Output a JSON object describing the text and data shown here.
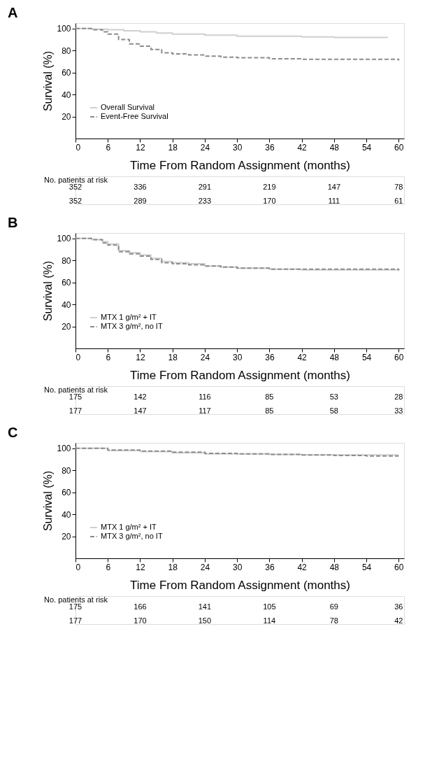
{
  "chart_data": [
    {
      "type": "step",
      "title": "A",
      "xlabel": "Time From Random Assignment (months)",
      "ylabel": "Survival (%)",
      "xlim": [
        0,
        61
      ],
      "xticks": [
        0,
        6,
        12,
        18,
        24,
        30,
        36,
        42,
        48,
        54,
        60
      ],
      "ylim": [
        0,
        105
      ],
      "yticks": [
        20,
        40,
        60,
        80,
        100
      ],
      "grid": false,
      "legend": "bottom left",
      "series": [
        {
          "name": "Overall Survival",
          "color": "#cfcfcf",
          "line_style": "solid",
          "x": [
            0,
            3,
            6,
            9,
            12,
            15,
            18,
            24,
            30,
            36,
            42,
            48,
            54,
            58
          ],
          "values": [
            100,
            99.5,
            99,
            98,
            97,
            96,
            95,
            94,
            93,
            93,
            92.5,
            92,
            92,
            92
          ]
        },
        {
          "name": "Event-Free Survival",
          "color": "#8c8c8c",
          "line_style": "dashed",
          "x": [
            0,
            3,
            5,
            6,
            8,
            10,
            12,
            14,
            16,
            18,
            21,
            24,
            27,
            30,
            36,
            42,
            48,
            54,
            58,
            60
          ],
          "values": [
            100,
            99,
            97,
            95,
            90,
            86,
            84,
            81,
            78,
            77,
            76,
            75,
            74,
            73.5,
            72.5,
            72,
            72,
            72,
            72,
            71
          ]
        }
      ],
      "annotations": [
        "No. patients at risk",
        "352",
        "336",
        "291",
        "219",
        "147",
        "78",
        "352",
        "289",
        "233",
        "170",
        "111",
        "61"
      ]
    },
    {
      "type": "step",
      "title": "B",
      "xlabel": "Time From Random Assignment (months)",
      "ylabel": "Survival (%)",
      "xlim": [
        0,
        61
      ],
      "xticks": [
        0,
        6,
        12,
        18,
        24,
        30,
        36,
        42,
        48,
        54,
        60
      ],
      "ylim": [
        0,
        105
      ],
      "yticks": [
        20,
        40,
        60,
        80,
        100
      ],
      "grid": false,
      "legend": "bottom left",
      "series": [
        {
          "name": "MTX 1 g/m² + IT",
          "color": "#cfcfcf",
          "line_style": "solid",
          "x": [
            0,
            3,
            5,
            6,
            8,
            10,
            12,
            14,
            16,
            18,
            21,
            24,
            27,
            30,
            36,
            42,
            48,
            54,
            60
          ],
          "values": [
            100,
            99,
            97,
            95,
            89,
            87,
            85,
            82,
            79,
            78,
            77,
            75,
            74,
            73,
            72,
            71.5,
            71.5,
            71.5,
            71
          ]
        },
        {
          "name": "MTX 3 g/m², no IT",
          "color": "#8c8c8c",
          "line_style": "dashed",
          "x": [
            0,
            3,
            5,
            6,
            8,
            10,
            12,
            14,
            16,
            18,
            21,
            24,
            27,
            30,
            36,
            42,
            48,
            54,
            60
          ],
          "values": [
            100,
            99,
            96,
            94,
            88,
            86,
            84,
            81,
            78,
            77,
            76,
            75,
            74,
            73,
            72,
            72,
            72,
            72,
            71
          ]
        }
      ],
      "annotations": [
        "No. patients at risk",
        "175",
        "142",
        "116",
        "85",
        "53",
        "28",
        "177",
        "147",
        "117",
        "85",
        "58",
        "33"
      ]
    },
    {
      "type": "step",
      "title": "C",
      "xlabel": "Time From Random Assignment (months)",
      "ylabel": "Survival (%)",
      "xlim": [
        0,
        61
      ],
      "xticks": [
        0,
        6,
        12,
        18,
        24,
        30,
        36,
        42,
        48,
        54,
        60
      ],
      "ylim": [
        0,
        105
      ],
      "yticks": [
        20,
        40,
        60,
        80,
        100
      ],
      "grid": false,
      "legend": "bottom left",
      "series": [
        {
          "name": "MTX 1 g/m² + IT",
          "color": "#cfcfcf",
          "line_style": "solid",
          "x": [
            0,
            6,
            12,
            18,
            24,
            30,
            36,
            42,
            48,
            54,
            60
          ],
          "values": [
            100,
            98,
            97,
            96,
            95,
            95,
            94.5,
            94,
            94,
            94,
            94
          ]
        },
        {
          "name": "MTX 3 g/m², no IT",
          "color": "#8c8c8c",
          "line_style": "dashed",
          "x": [
            0,
            6,
            12,
            18,
            24,
            30,
            36,
            42,
            48,
            54,
            60
          ],
          "values": [
            100,
            98.5,
            97.5,
            96.5,
            95.5,
            95,
            94.5,
            94,
            93.5,
            93,
            93
          ]
        }
      ],
      "annotations": [
        "No. patients at risk",
        "175",
        "166",
        "141",
        "105",
        "69",
        "36",
        "177",
        "170",
        "150",
        "114",
        "78",
        "42"
      ]
    }
  ]
}
